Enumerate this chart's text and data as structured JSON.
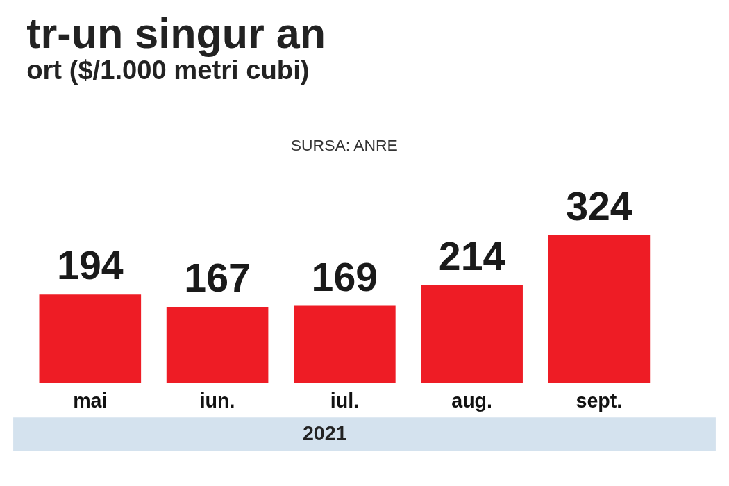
{
  "chart_data": {
    "type": "bar",
    "title": "tr-un singur an",
    "subtitle": "ort ($/1.000 metri cubi)",
    "categories": [
      "mai",
      "iun.",
      "iul.",
      "aug.",
      "sept."
    ],
    "values": [
      194,
      167,
      169,
      214,
      324
    ],
    "color": "#ee1c25",
    "data_labels": true,
    "annotations": [
      "SURSA: ANRE",
      "2021"
    ]
  }
}
